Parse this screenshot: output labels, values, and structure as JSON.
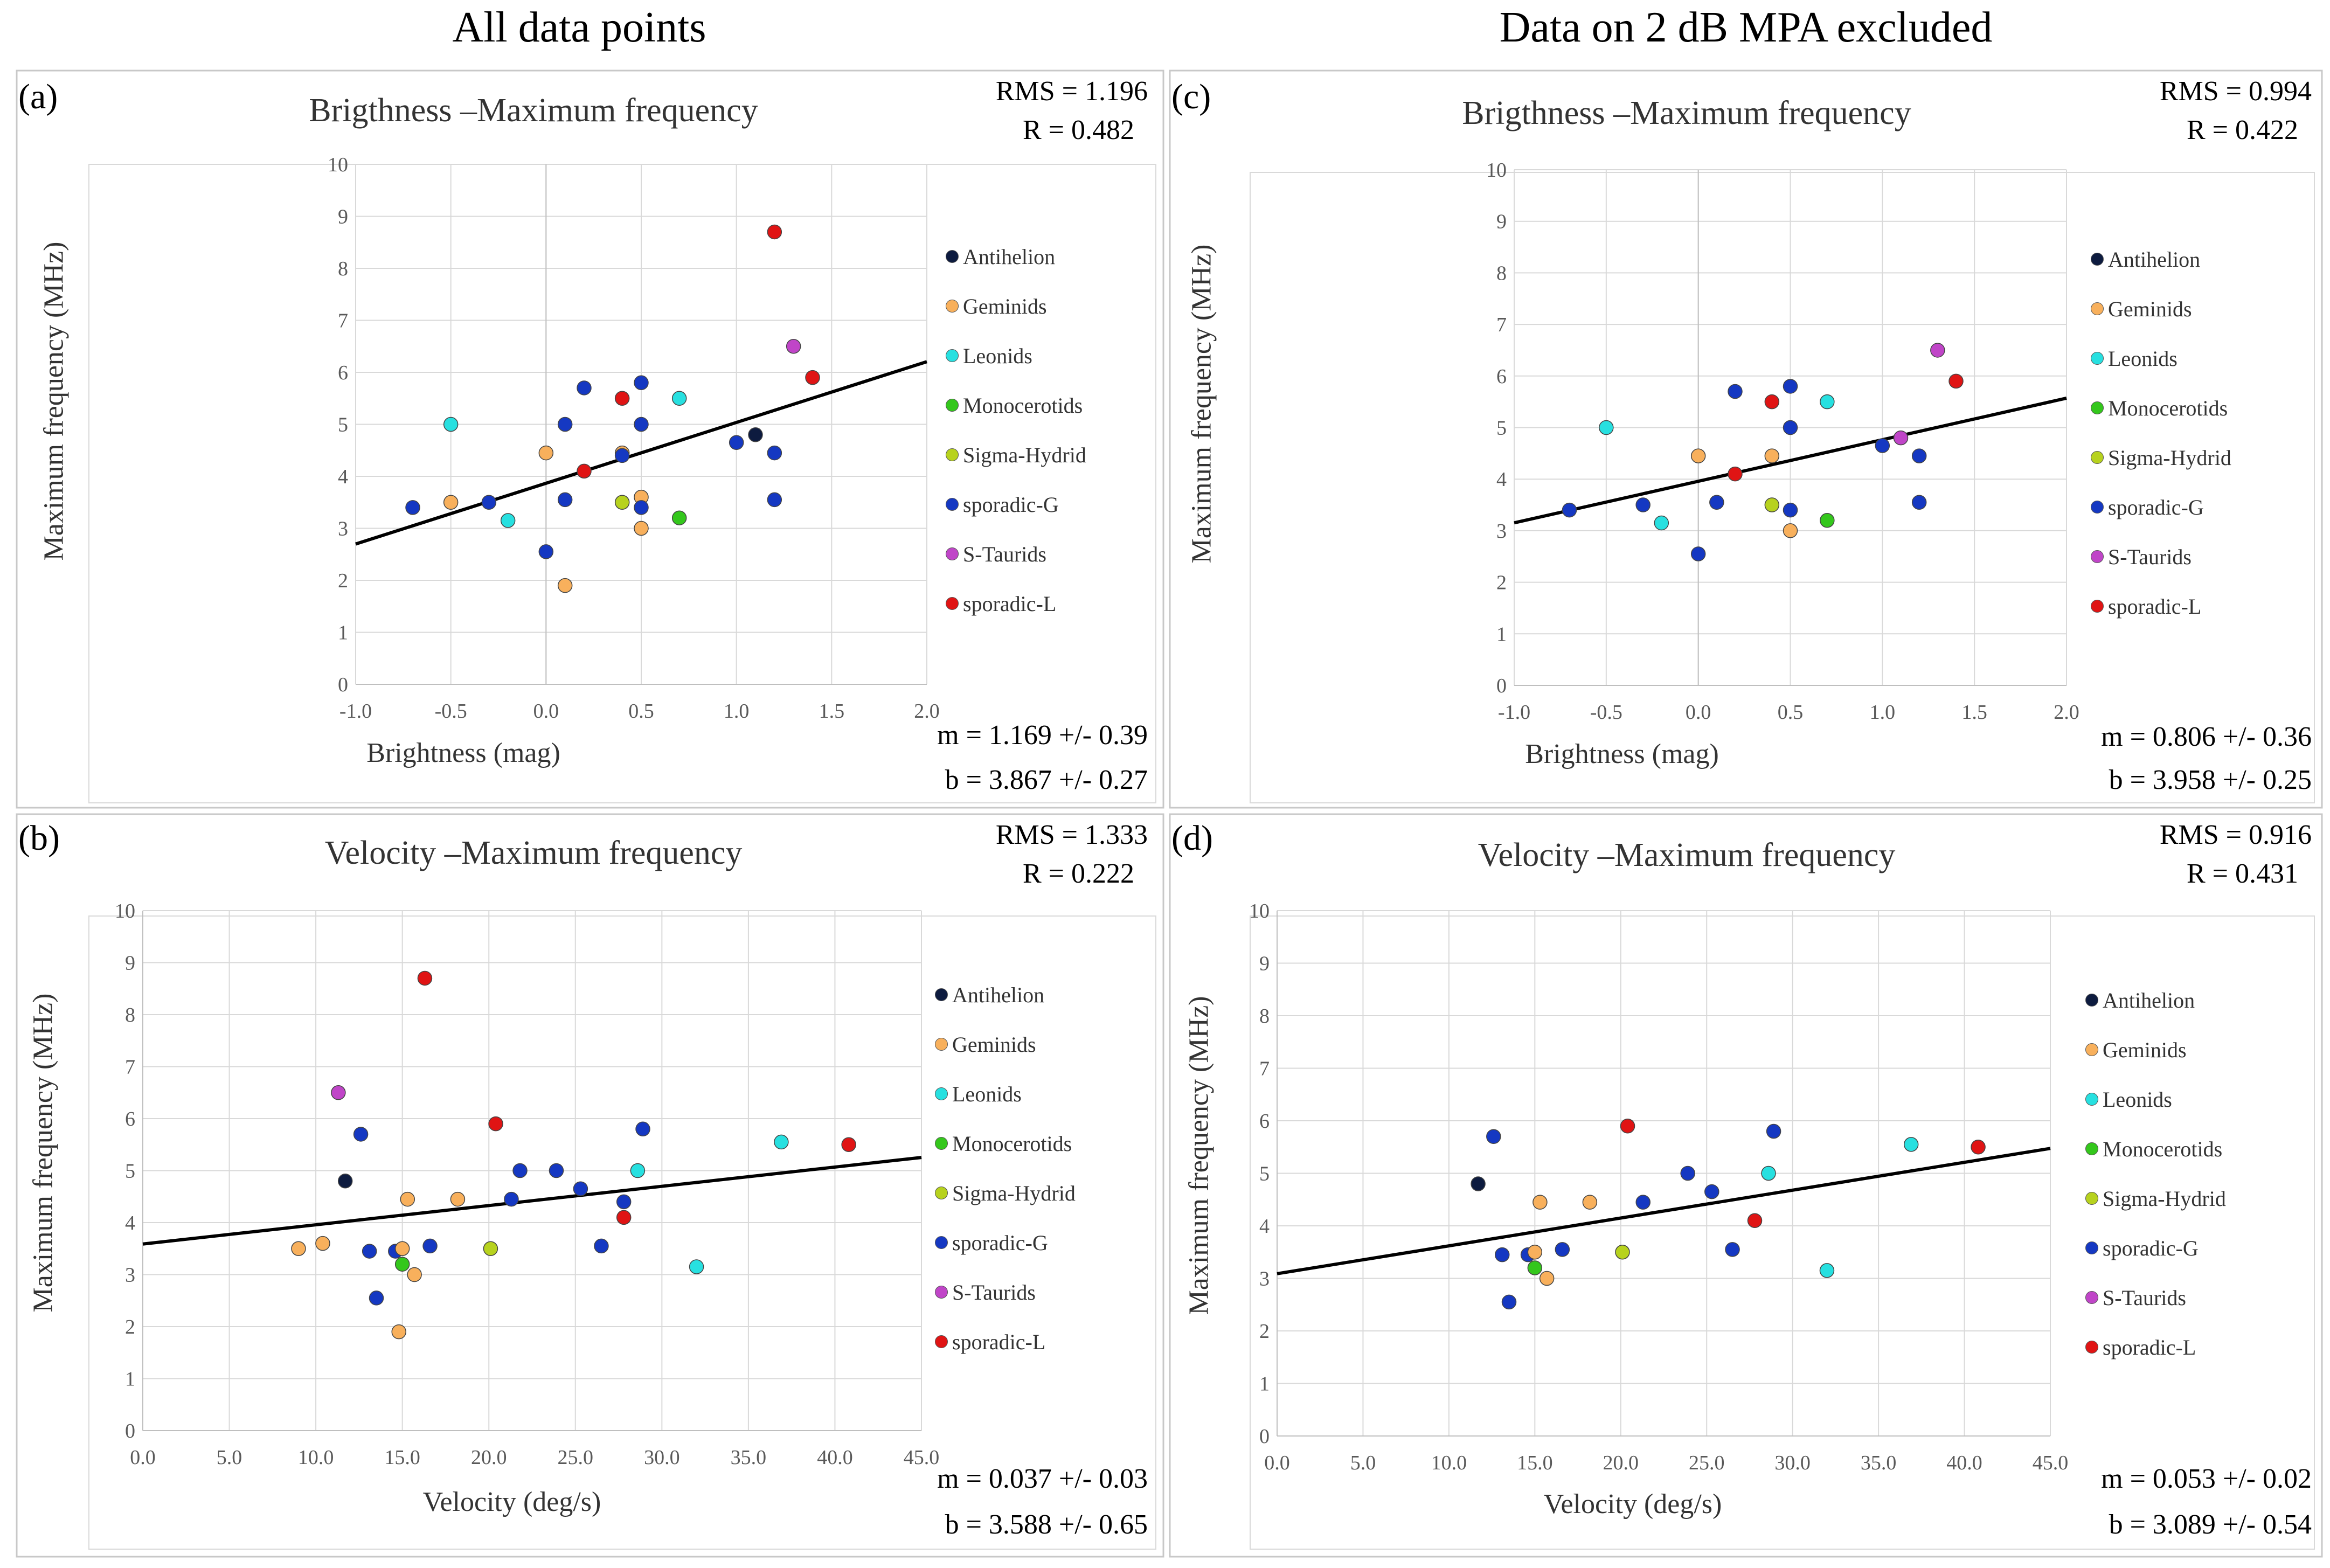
{
  "columns": {
    "left_title": "All data points",
    "right_title": "Data on 2 dB MPA excluded"
  },
  "legend": [
    {
      "name": "Antihelion",
      "color": "#0d1b3f"
    },
    {
      "name": "Geminids",
      "color": "#f8b05c"
    },
    {
      "name": "Leonids",
      "color": "#27e0e0"
    },
    {
      "name": "Monocerotids",
      "color": "#34c71c"
    },
    {
      "name": "Sigma-Hydrid",
      "color": "#b7d21e"
    },
    {
      "name": "sporadic-G",
      "color": "#1538c2"
    },
    {
      "name": "S-Taurids",
      "color": "#c045c8"
    },
    {
      "name": "sporadic-L",
      "color": "#e01414"
    }
  ],
  "panels": {
    "a": {
      "label": "(a)",
      "rms": "RMS = 1.196",
      "r": "R = 0.482",
      "m": "m = 1.169 +/-  0.39",
      "b": "b = 3.867 +/-  0.27"
    },
    "b": {
      "label": "(b)",
      "rms": "RMS = 1.333",
      "r": "R = 0.222",
      "m": "m = 0.037 +/-  0.03",
      "b": "b = 3.588 +/-  0.65"
    },
    "c": {
      "label": "(c)",
      "rms": "RMS = 0.994",
      "r": "R = 0.422",
      "m": "m = 0.806 +/-  0.36",
      "b": "b = 3.958 +/-  0.25"
    },
    "d": {
      "label": "(d)",
      "rms": "RMS = 0.916",
      "r": "R = 0.431",
      "m": "m = 0.053 +/-  0.02",
      "b": "b = 3.089 +/-  0.54"
    }
  },
  "chart_data": [
    {
      "id": "a",
      "type": "scatter",
      "title": "Brigthness –Maximum  frequency",
      "xlabel": "Brightness  (mag)",
      "ylabel": "Maximum  frequency  (MHz)",
      "xlim": [
        -1.0,
        2.0
      ],
      "ylim": [
        0,
        10
      ],
      "xticks": [
        "-1.0",
        "-0.5",
        "0.0",
        "0.5",
        "1.0",
        "1.5",
        "2.0"
      ],
      "yticks": [
        "0",
        "1",
        "2",
        "3",
        "4",
        "5",
        "6",
        "7",
        "8",
        "9",
        "10"
      ],
      "fit": {
        "m": 1.169,
        "b": 3.867
      },
      "points": [
        {
          "x": -0.7,
          "y": 3.4,
          "s": "sporadic-G"
        },
        {
          "x": -0.5,
          "y": 3.5,
          "s": "Geminids"
        },
        {
          "x": -0.5,
          "y": 5.0,
          "s": "Leonids"
        },
        {
          "x": -0.3,
          "y": 3.5,
          "s": "sporadic-G"
        },
        {
          "x": -0.2,
          "y": 3.15,
          "s": "Leonids"
        },
        {
          "x": 0.0,
          "y": 2.55,
          "s": "sporadic-G"
        },
        {
          "x": 0.0,
          "y": 4.45,
          "s": "Geminids"
        },
        {
          "x": 0.1,
          "y": 1.9,
          "s": "Geminids"
        },
        {
          "x": 0.1,
          "y": 3.55,
          "s": "sporadic-G"
        },
        {
          "x": 0.1,
          "y": 5.0,
          "s": "sporadic-G"
        },
        {
          "x": 0.2,
          "y": 5.7,
          "s": "sporadic-G"
        },
        {
          "x": 0.2,
          "y": 4.1,
          "s": "sporadic-L"
        },
        {
          "x": 0.4,
          "y": 5.5,
          "s": "sporadic-L"
        },
        {
          "x": 0.4,
          "y": 4.45,
          "s": "Geminids"
        },
        {
          "x": 0.4,
          "y": 4.4,
          "s": "sporadic-G"
        },
        {
          "x": 0.4,
          "y": 3.5,
          "s": "Sigma-Hydrid"
        },
        {
          "x": 0.5,
          "y": 5.8,
          "s": "sporadic-G"
        },
        {
          "x": 0.5,
          "y": 5.0,
          "s": "sporadic-G"
        },
        {
          "x": 0.5,
          "y": 3.6,
          "s": "Geminids"
        },
        {
          "x": 0.5,
          "y": 3.4,
          "s": "sporadic-G"
        },
        {
          "x": 0.5,
          "y": 3.0,
          "s": "Geminids"
        },
        {
          "x": 0.7,
          "y": 5.5,
          "s": "Leonids"
        },
        {
          "x": 0.7,
          "y": 3.2,
          "s": "Monocerotids"
        },
        {
          "x": 1.0,
          "y": 4.65,
          "s": "sporadic-G"
        },
        {
          "x": 1.1,
          "y": 4.8,
          "s": "Antihelion"
        },
        {
          "x": 1.2,
          "y": 8.7,
          "s": "sporadic-L"
        },
        {
          "x": 1.2,
          "y": 4.45,
          "s": "sporadic-G"
        },
        {
          "x": 1.2,
          "y": 3.55,
          "s": "sporadic-G"
        },
        {
          "x": 1.3,
          "y": 6.5,
          "s": "S-Taurids"
        },
        {
          "x": 1.4,
          "y": 5.9,
          "s": "sporadic-L"
        }
      ]
    },
    {
      "id": "b",
      "type": "scatter",
      "title": "Velocity –Maximum  frequency",
      "xlabel": "Velocity  (deg/s)",
      "ylabel": "Maximum  frequency  (MHz)",
      "xlim": [
        0,
        45
      ],
      "ylim": [
        0,
        10
      ],
      "xticks": [
        "0.0",
        "5.0",
        "10.0",
        "15.0",
        "20.0",
        "25.0",
        "30.0",
        "35.0",
        "40.0",
        "45.0"
      ],
      "yticks": [
        "0",
        "1",
        "2",
        "3",
        "4",
        "5",
        "6",
        "7",
        "8",
        "9",
        "10"
      ],
      "fit": {
        "m": 0.037,
        "b": 3.588
      },
      "points": [
        {
          "x": 9.0,
          "y": 3.5,
          "s": "Geminids"
        },
        {
          "x": 10.4,
          "y": 3.6,
          "s": "Geminids"
        },
        {
          "x": 11.3,
          "y": 6.5,
          "s": "S-Taurids"
        },
        {
          "x": 11.7,
          "y": 4.8,
          "s": "Antihelion"
        },
        {
          "x": 12.6,
          "y": 5.7,
          "s": "sporadic-G"
        },
        {
          "x": 13.1,
          "y": 3.45,
          "s": "sporadic-G"
        },
        {
          "x": 13.5,
          "y": 2.55,
          "s": "sporadic-G"
        },
        {
          "x": 14.6,
          "y": 3.45,
          "s": "sporadic-G"
        },
        {
          "x": 14.8,
          "y": 1.9,
          "s": "Geminids"
        },
        {
          "x": 15.0,
          "y": 3.5,
          "s": "Geminids"
        },
        {
          "x": 15.0,
          "y": 3.2,
          "s": "Monocerotids"
        },
        {
          "x": 15.3,
          "y": 4.45,
          "s": "Geminids"
        },
        {
          "x": 15.7,
          "y": 3.0,
          "s": "Geminids"
        },
        {
          "x": 16.3,
          "y": 8.7,
          "s": "sporadic-L"
        },
        {
          "x": 16.6,
          "y": 3.55,
          "s": "sporadic-G"
        },
        {
          "x": 18.2,
          "y": 4.45,
          "s": "Geminids"
        },
        {
          "x": 20.1,
          "y": 3.5,
          "s": "Sigma-Hydrid"
        },
        {
          "x": 20.4,
          "y": 5.9,
          "s": "sporadic-L"
        },
        {
          "x": 21.3,
          "y": 4.45,
          "s": "sporadic-G"
        },
        {
          "x": 21.8,
          "y": 5.0,
          "s": "sporadic-G"
        },
        {
          "x": 23.9,
          "y": 5.0,
          "s": "sporadic-G"
        },
        {
          "x": 25.3,
          "y": 4.65,
          "s": "sporadic-G"
        },
        {
          "x": 26.5,
          "y": 3.55,
          "s": "sporadic-G"
        },
        {
          "x": 27.8,
          "y": 4.1,
          "s": "sporadic-L"
        },
        {
          "x": 27.8,
          "y": 4.4,
          "s": "sporadic-G"
        },
        {
          "x": 28.6,
          "y": 5.0,
          "s": "Leonids"
        },
        {
          "x": 28.9,
          "y": 5.8,
          "s": "sporadic-G"
        },
        {
          "x": 32.0,
          "y": 3.15,
          "s": "Leonids"
        },
        {
          "x": 36.9,
          "y": 5.55,
          "s": "Leonids"
        },
        {
          "x": 40.8,
          "y": 5.5,
          "s": "sporadic-L"
        }
      ]
    },
    {
      "id": "c",
      "type": "scatter",
      "title": "Brigthness –Maximum  frequency",
      "xlabel": "Brightness  (mag)",
      "ylabel": "Maximum  frequency  (MHz)",
      "xlim": [
        -1.0,
        2.0
      ],
      "ylim": [
        0,
        10
      ],
      "xticks": [
        "-1.0",
        "-0.5",
        "0.0",
        "0.5",
        "1.0",
        "1.5",
        "2.0"
      ],
      "yticks": [
        "0",
        "1",
        "2",
        "3",
        "4",
        "5",
        "6",
        "7",
        "8",
        "9",
        "10"
      ],
      "fit": {
        "m": 0.806,
        "b": 3.958
      },
      "points": [
        {
          "x": -0.7,
          "y": 3.4,
          "s": "sporadic-G"
        },
        {
          "x": -0.5,
          "y": 5.0,
          "s": "Leonids"
        },
        {
          "x": -0.3,
          "y": 3.5,
          "s": "sporadic-G"
        },
        {
          "x": -0.2,
          "y": 3.15,
          "s": "Leonids"
        },
        {
          "x": 0.0,
          "y": 2.55,
          "s": "sporadic-G"
        },
        {
          "x": 0.0,
          "y": 4.45,
          "s": "Geminids"
        },
        {
          "x": 0.1,
          "y": 3.55,
          "s": "sporadic-G"
        },
        {
          "x": 0.2,
          "y": 5.7,
          "s": "sporadic-G"
        },
        {
          "x": 0.2,
          "y": 4.1,
          "s": "sporadic-L"
        },
        {
          "x": 0.4,
          "y": 5.5,
          "s": "sporadic-L"
        },
        {
          "x": 0.4,
          "y": 4.45,
          "s": "Geminids"
        },
        {
          "x": 0.4,
          "y": 3.5,
          "s": "Sigma-Hydrid"
        },
        {
          "x": 0.5,
          "y": 5.8,
          "s": "sporadic-G"
        },
        {
          "x": 0.5,
          "y": 5.0,
          "s": "sporadic-G"
        },
        {
          "x": 0.5,
          "y": 3.4,
          "s": "sporadic-G"
        },
        {
          "x": 0.5,
          "y": 3.0,
          "s": "Geminids"
        },
        {
          "x": 0.7,
          "y": 5.5,
          "s": "Leonids"
        },
        {
          "x": 0.7,
          "y": 3.2,
          "s": "Monocerotids"
        },
        {
          "x": 1.0,
          "y": 4.65,
          "s": "sporadic-G"
        },
        {
          "x": 1.1,
          "y": 4.8,
          "s": "S-Taurids"
        },
        {
          "x": 1.2,
          "y": 4.45,
          "s": "sporadic-G"
        },
        {
          "x": 1.2,
          "y": 3.55,
          "s": "sporadic-G"
        },
        {
          "x": 1.3,
          "y": 6.5,
          "s": "S-Taurids"
        },
        {
          "x": 1.4,
          "y": 5.9,
          "s": "sporadic-L"
        }
      ]
    },
    {
      "id": "d",
      "type": "scatter",
      "title": "Velocity –Maximum  frequency",
      "xlabel": "Velocity  (deg/s)",
      "ylabel": "Maximum  frequency  (MHz)",
      "xlim": [
        0,
        45
      ],
      "ylim": [
        0,
        10
      ],
      "xticks": [
        "0.0",
        "5.0",
        "10.0",
        "15.0",
        "20.0",
        "25.0",
        "30.0",
        "35.0",
        "40.0",
        "45.0"
      ],
      "yticks": [
        "0",
        "1",
        "2",
        "3",
        "4",
        "5",
        "6",
        "7",
        "8",
        "9",
        "10"
      ],
      "fit": {
        "m": 0.053,
        "b": 3.089
      },
      "points": [
        {
          "x": 11.7,
          "y": 4.8,
          "s": "Antihelion"
        },
        {
          "x": 12.6,
          "y": 5.7,
          "s": "sporadic-G"
        },
        {
          "x": 13.1,
          "y": 3.45,
          "s": "sporadic-G"
        },
        {
          "x": 13.5,
          "y": 2.55,
          "s": "sporadic-G"
        },
        {
          "x": 14.6,
          "y": 3.45,
          "s": "sporadic-G"
        },
        {
          "x": 15.0,
          "y": 3.5,
          "s": "Geminids"
        },
        {
          "x": 15.0,
          "y": 3.2,
          "s": "Monocerotids"
        },
        {
          "x": 15.3,
          "y": 4.45,
          "s": "Geminids"
        },
        {
          "x": 15.7,
          "y": 3.0,
          "s": "Geminids"
        },
        {
          "x": 16.6,
          "y": 3.55,
          "s": "sporadic-G"
        },
        {
          "x": 18.2,
          "y": 4.45,
          "s": "Geminids"
        },
        {
          "x": 20.1,
          "y": 3.5,
          "s": "Sigma-Hydrid"
        },
        {
          "x": 20.4,
          "y": 5.9,
          "s": "sporadic-L"
        },
        {
          "x": 21.3,
          "y": 4.45,
          "s": "sporadic-G"
        },
        {
          "x": 23.9,
          "y": 5.0,
          "s": "sporadic-G"
        },
        {
          "x": 25.3,
          "y": 4.65,
          "s": "sporadic-G"
        },
        {
          "x": 26.5,
          "y": 3.55,
          "s": "sporadic-G"
        },
        {
          "x": 27.8,
          "y": 4.1,
          "s": "sporadic-L"
        },
        {
          "x": 28.6,
          "y": 5.0,
          "s": "Leonids"
        },
        {
          "x": 28.9,
          "y": 5.8,
          "s": "sporadic-G"
        },
        {
          "x": 32.0,
          "y": 3.15,
          "s": "Leonids"
        },
        {
          "x": 36.9,
          "y": 5.55,
          "s": "Leonids"
        },
        {
          "x": 40.8,
          "y": 5.5,
          "s": "sporadic-L"
        }
      ]
    }
  ]
}
